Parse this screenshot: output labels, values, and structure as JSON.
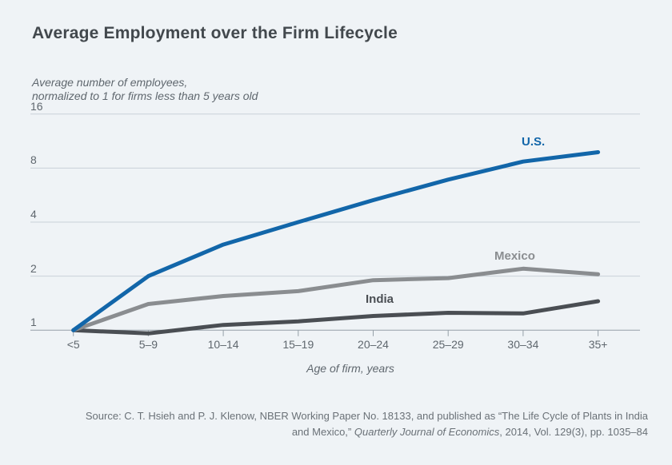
{
  "chart_data": {
    "type": "line",
    "title": "Average Employment over the Firm Lifecycle",
    "subtitle_lines": [
      "Average number of employees,",
      "normalized to 1 for firms less than 5 years old"
    ],
    "xlabel": "Age of firm, years",
    "categories": [
      "<5",
      "5–9",
      "10–14",
      "15–19",
      "20–24",
      "25–29",
      "30–34",
      "35+"
    ],
    "y_scale": "log2",
    "y_ticks": [
      16,
      8,
      4,
      2,
      1
    ],
    "ylim": [
      1,
      16
    ],
    "grid": true,
    "legend_position": "inline-labels",
    "series": [
      {
        "name": "U.S.",
        "color": "#1266a9",
        "values": [
          1.0,
          2.0,
          3.0,
          4.0,
          5.3,
          6.9,
          8.7,
          9.8
        ]
      },
      {
        "name": "Mexico",
        "color": "#8a8d90",
        "values": [
          1.0,
          1.4,
          1.55,
          1.65,
          1.9,
          1.95,
          2.2,
          2.05
        ]
      },
      {
        "name": "India",
        "color": "#4a4e53",
        "values": [
          1.0,
          0.96,
          1.07,
          1.12,
          1.2,
          1.25,
          1.24,
          1.45
        ]
      }
    ],
    "source": {
      "line1": "Source: C. T. Hsieh and P. J. Klenow, NBER Working Paper No. 18133, and published as “The Life Cycle of Plants in India",
      "line2_prefix": "and Mexico,” ",
      "line2_italic": "Quarterly Journal of Economics",
      "line2_suffix": ", 2014, Vol. 129(3), pp. 1035–84"
    },
    "colors": {
      "background": "#eff3f6",
      "grid": "#c9d1d8",
      "axis": "#95a0a8",
      "title_text": "#42484d",
      "label_text": "#5f676e",
      "source_text": "#6a7177"
    }
  }
}
